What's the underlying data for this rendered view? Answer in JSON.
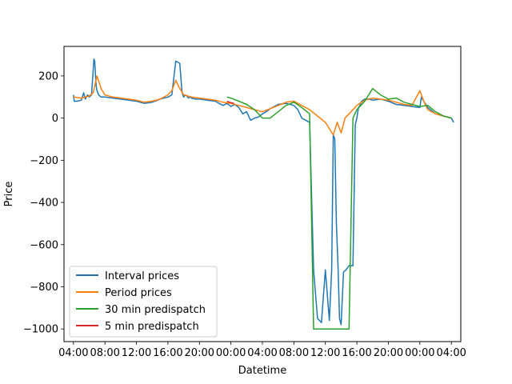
{
  "chart_data": {
    "type": "line",
    "title": "",
    "xlabel": "Datetime",
    "ylabel": "Price",
    "ylim": [
      -1060,
      340
    ],
    "xlim_hours": [
      -1.2,
      49.2
    ],
    "yticks": [
      200,
      0,
      -200,
      -400,
      -600,
      -800,
      -1000
    ],
    "ytick_labels": [
      "200",
      "0",
      "−200",
      "−400",
      "−600",
      "−800",
      "−1000"
    ],
    "xticks_hours": [
      0,
      4,
      8,
      12,
      16,
      20,
      24,
      28,
      32,
      36,
      40,
      44,
      48
    ],
    "xtick_labels": [
      "04:00",
      "08:00",
      "12:00",
      "16:00",
      "20:00",
      "00:00",
      "04:00",
      "08:00",
      "12:00",
      "16:00",
      "20:00",
      "00:00",
      "04:00"
    ],
    "grid": false,
    "legend_position": "lower-left",
    "series": [
      {
        "name": "Interval prices",
        "color": "#1f77b4",
        "x": [
          0,
          0.1,
          0.2,
          0.5,
          1,
          1.3,
          1.5,
          1.8,
          2,
          2.3,
          2.6,
          2.7,
          2.8,
          2.9,
          3.0,
          3.2,
          3.5,
          4,
          5,
          6,
          7,
          8,
          9,
          10,
          11,
          12,
          12.5,
          13,
          13.5,
          13.8,
          14.0,
          14.2,
          14.4,
          14.6,
          14.8,
          15,
          15.5,
          16,
          17,
          18,
          19,
          19.5,
          20,
          20.5,
          21,
          21.5,
          22,
          22.5,
          23,
          23.5,
          24,
          24.5,
          25,
          25.5,
          26,
          27,
          28,
          28.5,
          29,
          29.5,
          30,
          30.5,
          31,
          31.5,
          32,
          32.5,
          32.8,
          33.0,
          33.2,
          33.4,
          33.6,
          33.8,
          34.0,
          34.3,
          34.6,
          35.0,
          35.5,
          35.8,
          36.0,
          36.2,
          36.4,
          36.6,
          37.0,
          37.5,
          38,
          39,
          40,
          41,
          42,
          43,
          44,
          44.2,
          44.5,
          45,
          46,
          47,
          48,
          48.3
        ],
        "y": [
          110,
          80,
          80,
          80,
          85,
          120,
          90,
          110,
          100,
          110,
          280,
          270,
          200,
          150,
          130,
          110,
          100,
          100,
          95,
          90,
          85,
          80,
          70,
          75,
          90,
          100,
          110,
          270,
          260,
          120,
          100,
          110,
          105,
          95,
          100,
          95,
          90,
          90,
          85,
          80,
          60,
          70,
          55,
          65,
          50,
          20,
          30,
          -10,
          0,
          5,
          20,
          30,
          45,
          55,
          65,
          70,
          60,
          40,
          0,
          -10,
          -20,
          -720,
          -950,
          -970,
          -720,
          -960,
          -720,
          -80,
          -100,
          -500,
          -700,
          -950,
          -980,
          -730,
          -720,
          -700,
          -700,
          -30,
          0,
          50,
          60,
          80,
          90,
          90,
          85,
          90,
          80,
          65,
          60,
          55,
          50,
          100,
          80,
          50,
          20,
          10,
          0,
          -20
        ]
      },
      {
        "name": "Period prices",
        "color": "#ff7f0e",
        "x": [
          0,
          1,
          2,
          2.5,
          3,
          3.5,
          4,
          5,
          6,
          7,
          8,
          9,
          10,
          11,
          12,
          12.5,
          13,
          13.5,
          14,
          14.5,
          15,
          16,
          17,
          18,
          19,
          20,
          21,
          22,
          23,
          24,
          25,
          26,
          27,
          28,
          29,
          30,
          31,
          32,
          33,
          33.5,
          34,
          34.5,
          35,
          36,
          37,
          38,
          39,
          40,
          41,
          42,
          43,
          44,
          44.5,
          45,
          46,
          47,
          48
        ],
        "y": [
          100,
          95,
          105,
          120,
          200,
          140,
          110,
          100,
          95,
          90,
          85,
          75,
          80,
          90,
          110,
          130,
          180,
          140,
          110,
          105,
          100,
          95,
          90,
          85,
          75,
          70,
          60,
          50,
          40,
          30,
          45,
          60,
          75,
          80,
          60,
          40,
          10,
          -20,
          -80,
          -20,
          -70,
          0,
          20,
          60,
          85,
          95,
          90,
          85,
          75,
          65,
          60,
          130,
          80,
          40,
          20,
          10,
          0
        ]
      },
      {
        "name": "30 min predispatch",
        "color": "#2ca02c",
        "x": [
          19.5,
          20,
          21,
          22,
          23,
          24,
          25,
          26,
          27,
          28,
          29,
          30,
          30.5,
          31,
          32,
          33,
          34,
          35,
          35.5,
          36,
          37,
          38,
          39,
          40,
          41,
          42,
          43,
          44,
          45,
          46,
          47,
          48
        ],
        "y": [
          100,
          95,
          80,
          65,
          40,
          0,
          0,
          30,
          60,
          75,
          50,
          20,
          -1000,
          -1000,
          -1000,
          -1000,
          -1000,
          -1000,
          0,
          40,
          80,
          140,
          110,
          90,
          95,
          75,
          65,
          55,
          60,
          30,
          10,
          0
        ]
      },
      {
        "name": "5 min predispatch",
        "color": "#d62728",
        "x": [
          19.5,
          19.8,
          20.1,
          20.4
        ],
        "y": [
          80,
          75,
          72,
          70
        ]
      }
    ]
  }
}
